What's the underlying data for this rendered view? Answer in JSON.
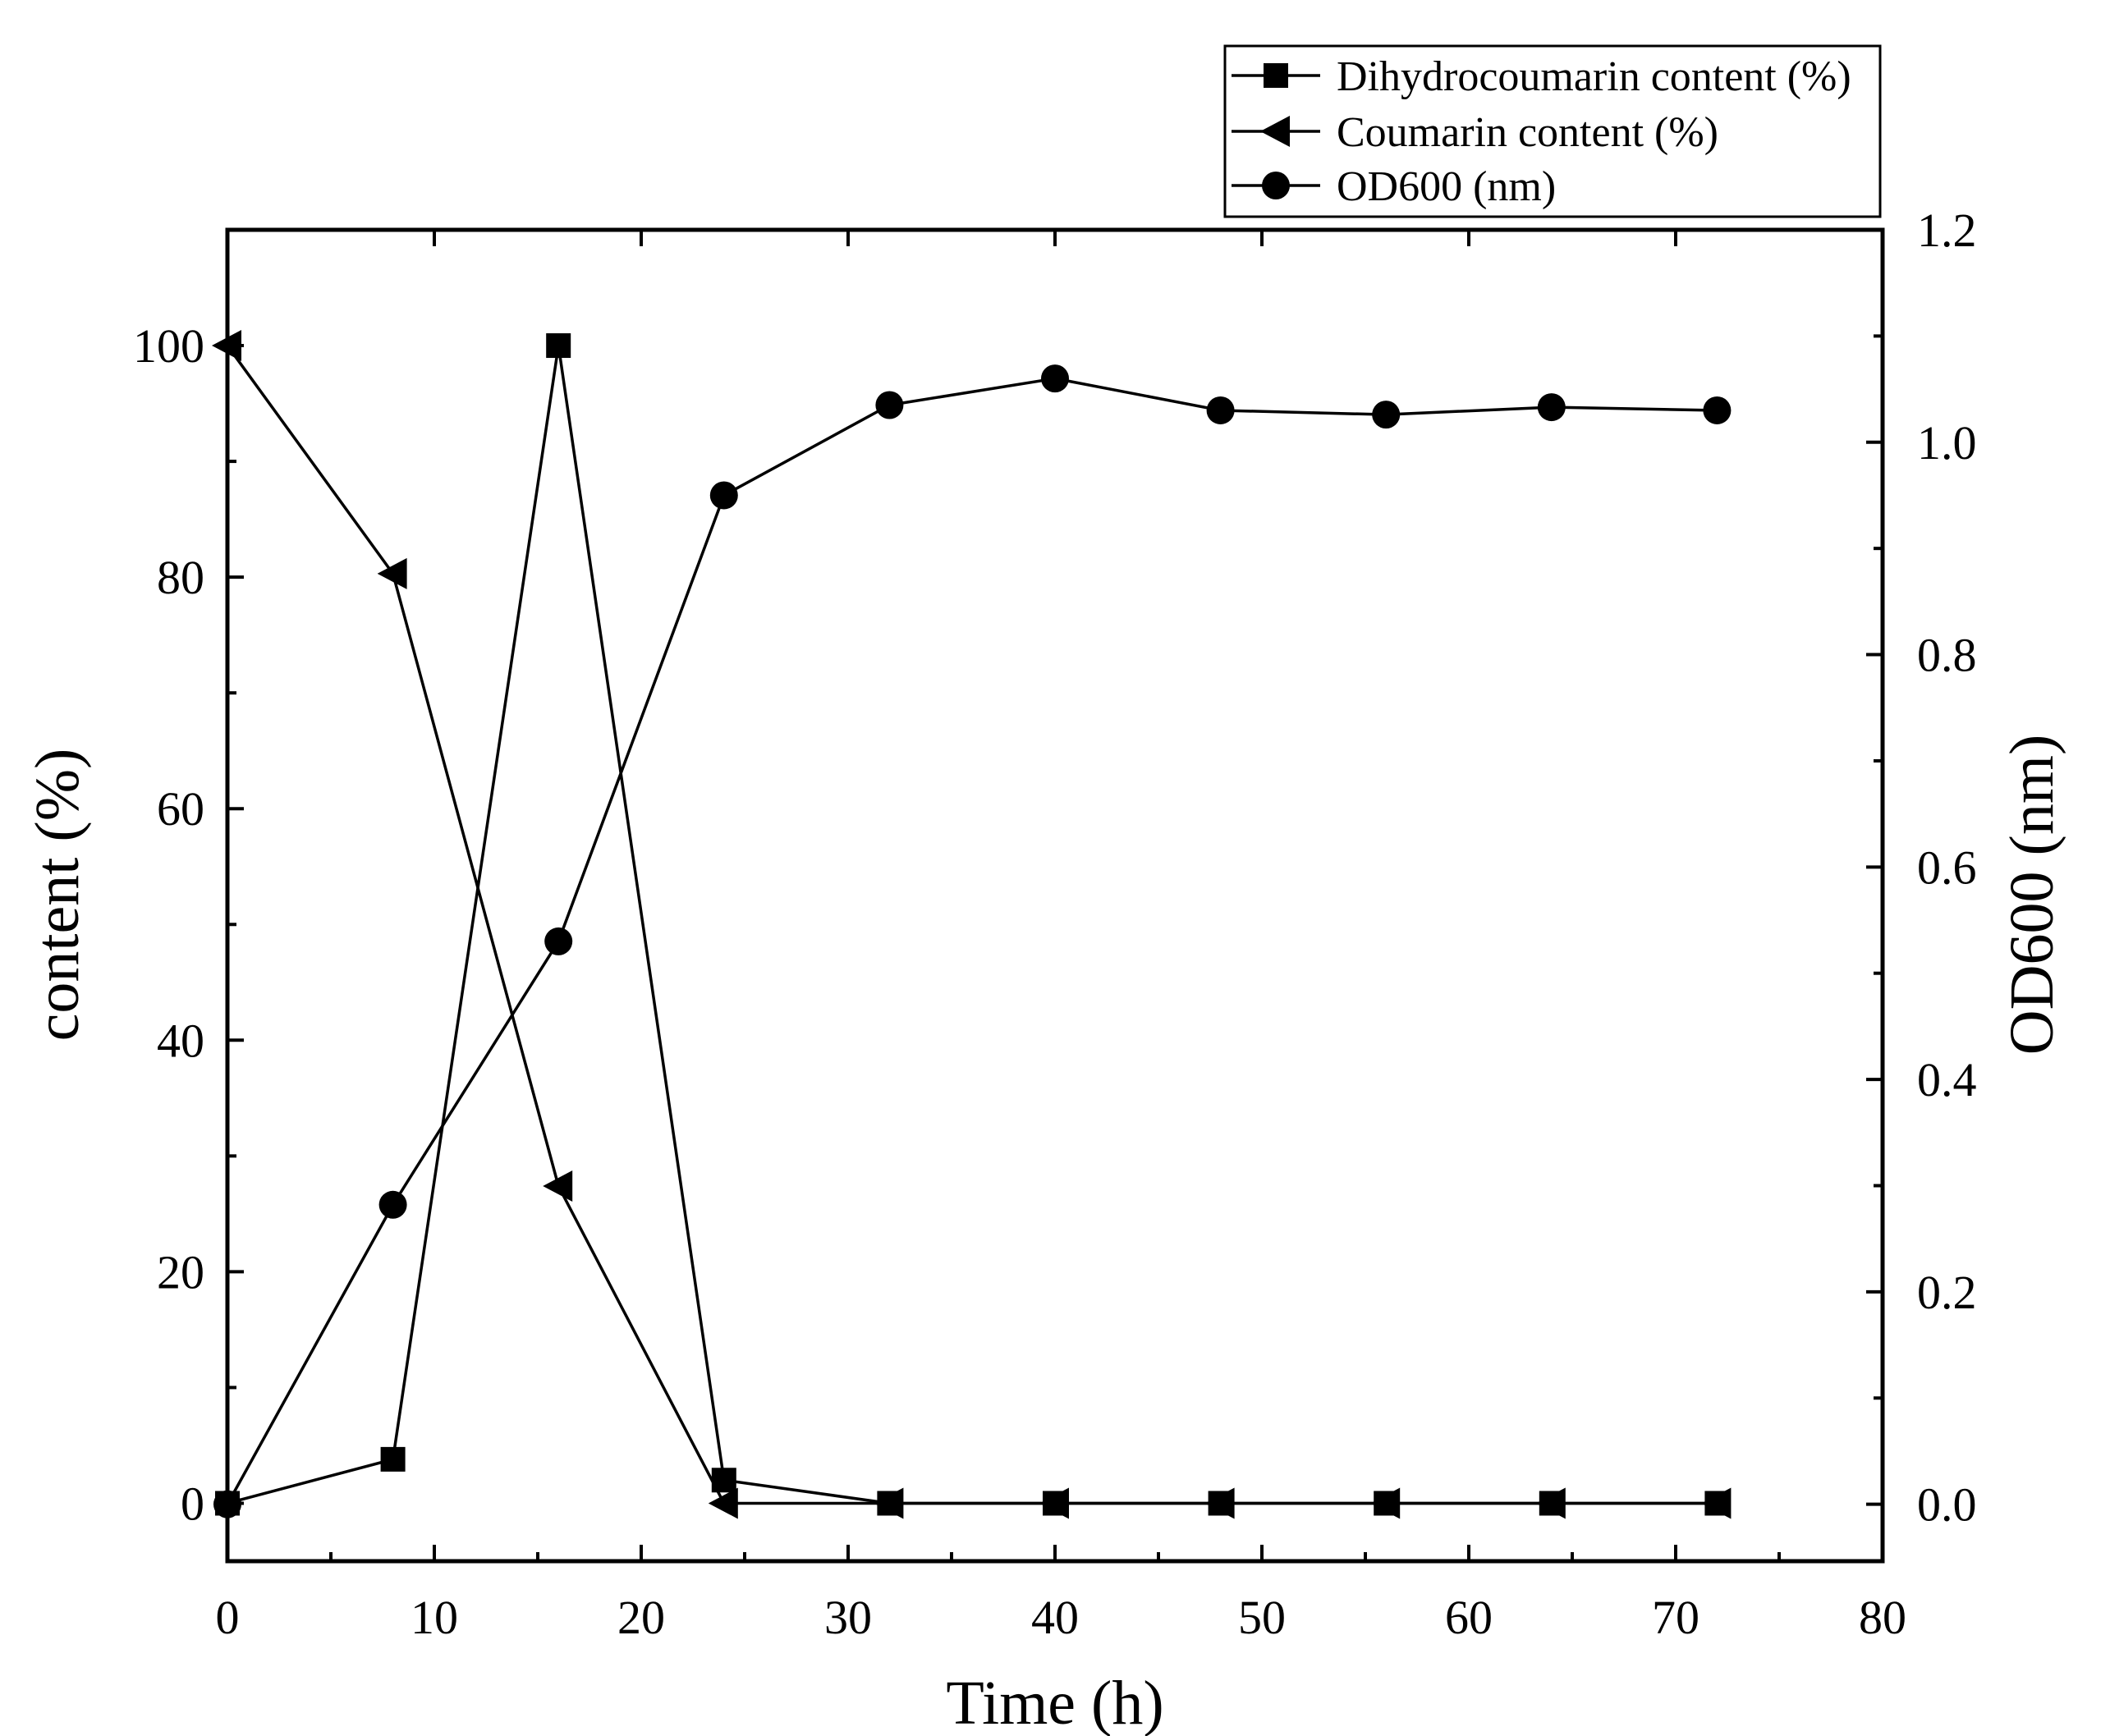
{
  "chart_data": {
    "type": "line",
    "title": "",
    "xlabel": "Time (h)",
    "ylabel": "content (%)",
    "y2label": "OD600 (nm)",
    "xlim": [
      0,
      80
    ],
    "ylim": [
      -5,
      110
    ],
    "y2lim": [
      -0.0536,
      1.2
    ],
    "x_ticks": [
      0,
      10,
      20,
      30,
      40,
      50,
      60,
      70,
      80
    ],
    "y_ticks": [
      0,
      20,
      40,
      60,
      80,
      100
    ],
    "y2_ticks": [
      0.0,
      0.2,
      0.4,
      0.6,
      0.8,
      1.0,
      1.2
    ],
    "x_tick_labels": [
      "0",
      "10",
      "20",
      "30",
      "40",
      "50",
      "60",
      "70",
      "80"
    ],
    "y_tick_labels": [
      "0",
      "20",
      "40",
      "60",
      "80",
      "100"
    ],
    "y2_tick_labels": [
      "0.0",
      "0.2",
      "0.4",
      "0.6",
      "0.8",
      "1.0",
      "1.2"
    ],
    "legend_position": "top-right",
    "series": [
      {
        "name": "Dihydrocoumarin content (%)",
        "axis": "left",
        "marker": "square",
        "x": [
          0,
          8,
          16,
          24,
          32,
          40,
          48,
          56,
          64,
          72
        ],
        "values": [
          0,
          3.8,
          100,
          2,
          0,
          0,
          0,
          0,
          0,
          0
        ]
      },
      {
        "name": "Coumarin content (%)",
        "axis": "left",
        "marker": "triangle-left",
        "x": [
          0,
          8,
          16,
          24,
          32,
          40,
          48,
          56,
          64,
          72
        ],
        "values": [
          100,
          80.3,
          27.4,
          0,
          0,
          0,
          0,
          0,
          0,
          0
        ]
      },
      {
        "name": "OD600 (nm)",
        "axis": "right",
        "marker": "circle",
        "x": [
          0,
          8,
          16,
          24,
          32,
          40,
          48,
          56,
          64,
          72
        ],
        "values": [
          0.0,
          0.282,
          0.53,
          0.95,
          1.035,
          1.06,
          1.03,
          1.026,
          1.033,
          1.03
        ]
      }
    ],
    "colors": {
      "line": "#000000",
      "background": "#ffffff"
    }
  }
}
